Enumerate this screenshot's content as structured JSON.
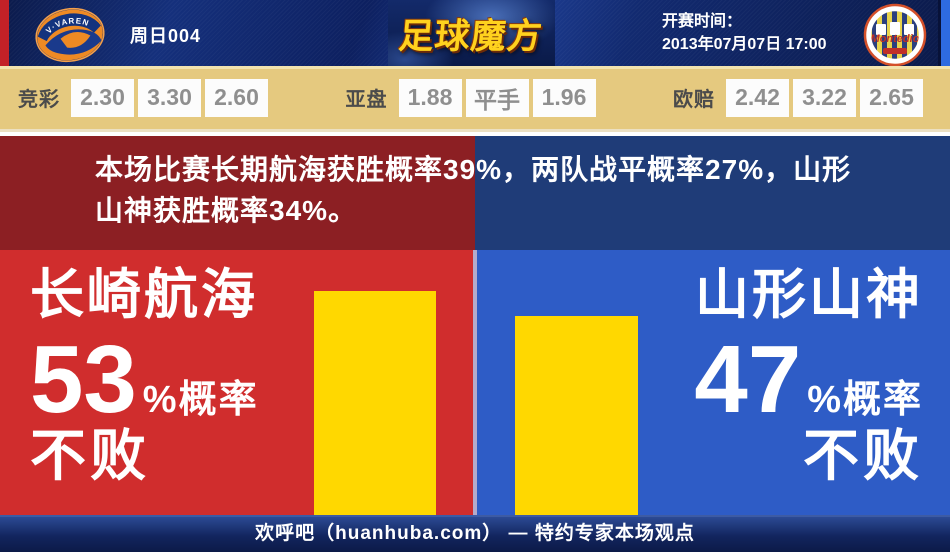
{
  "header": {
    "match_code": "周日004",
    "brand": "足球魔方",
    "kickoff_label": "开赛时间：",
    "kickoff_time": "2013年07月07日 17:00",
    "home_badge_text": "V·VAREN",
    "away_badge_text": "Montedio"
  },
  "odds": {
    "sections": [
      {
        "label": "竞彩",
        "values": [
          "2.30",
          "3.30",
          "2.60"
        ]
      },
      {
        "label": "亚盘",
        "values": [
          "1.88",
          "平手",
          "1.96"
        ]
      },
      {
        "label": "欧赔",
        "values": [
          "2.42",
          "3.22",
          "2.65"
        ]
      }
    ]
  },
  "summary": "本场比赛长期航海获胜概率39%，两队战平概率27%，山形山神获胜概率34%。",
  "prediction": {
    "home": {
      "name": "长崎航海",
      "percent": 53,
      "suffix": "%概率",
      "outcome": "不败"
    },
    "away": {
      "name": "山形山神",
      "percent": 47,
      "suffix": "%概率",
      "outcome": "不败"
    }
  },
  "footer": "欢呼吧（huanhuba.com） — 特约专家本场观点",
  "colors": {
    "home_accent": "#d02d2d",
    "away_accent": "#2e5cc6",
    "home_dark": "#8c1f23",
    "away_dark": "#1f3c78",
    "bar_yellow": "#ffd800",
    "odds_band_gold": "#e5c97f",
    "brand_gold": "#ffd21e"
  },
  "chart_data": {
    "type": "bar",
    "categories": [
      "长崎航海",
      "山形山神"
    ],
    "values": [
      53,
      47
    ],
    "unit": "%",
    "ylabel": "不败概率"
  }
}
